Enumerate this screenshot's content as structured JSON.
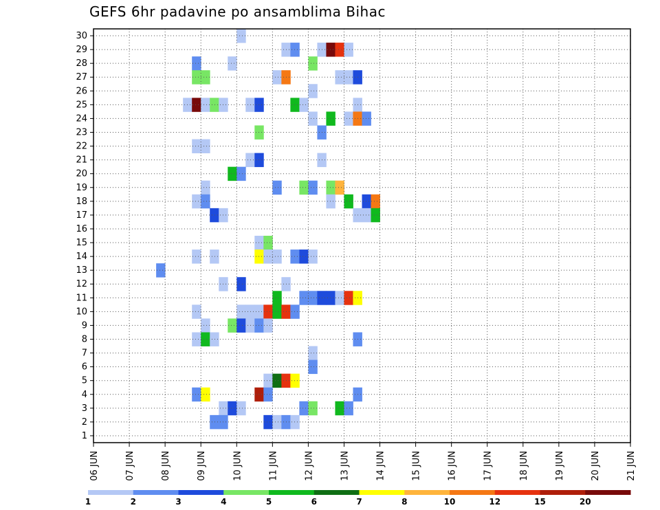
{
  "title": "GEFS 6hr padavine po ansamblima Bihac",
  "chart_data": {
    "type": "heatmap",
    "title": "GEFS 6hr padavine po ansamblima Bihac",
    "x_labels": [
      "06 JUN",
      "07 JUN",
      "08 JUN",
      "09 JUN",
      "10 JUN",
      "11 JUN",
      "12 JUN",
      "13 JUN",
      "14 JUN",
      "15 JUN",
      "16 JUN",
      "17 JUN",
      "18 JUN",
      "19 JUN",
      "20 JUN",
      "21 JUN"
    ],
    "x_range_steps_6h": [
      0,
      60
    ],
    "y_labels": [
      "1",
      "2",
      "3",
      "4",
      "5",
      "6",
      "7",
      "8",
      "9",
      "10",
      "11",
      "12",
      "13",
      "14",
      "15",
      "16",
      "17",
      "18",
      "19",
      "20",
      "21",
      "22",
      "23",
      "24",
      "25",
      "26",
      "27",
      "28",
      "29",
      "30"
    ],
    "grid": "dotted",
    "colorbar": {
      "ticks": [
        "1",
        "2",
        "3",
        "4",
        "5",
        "6",
        "7",
        "8",
        "10",
        "12",
        "15",
        "20"
      ],
      "colors": [
        "#b4c8f5",
        "#5f8df0",
        "#1e4bdc",
        "#78e664",
        "#10b91e",
        "#0f6e14",
        "#ffff00",
        "#ffb43c",
        "#f57814",
        "#e6320f",
        "#af1e0a",
        "#780a0a"
      ]
    },
    "cells": [
      [
        16,
        30,
        0
      ],
      [
        21,
        29,
        0
      ],
      [
        22,
        29,
        1
      ],
      [
        25,
        29,
        0
      ],
      [
        26,
        29,
        11
      ],
      [
        27,
        29,
        9
      ],
      [
        28,
        29,
        0
      ],
      [
        11,
        28,
        1
      ],
      [
        15,
        28,
        0
      ],
      [
        24,
        28,
        3
      ],
      [
        11,
        27,
        3
      ],
      [
        12,
        27,
        3
      ],
      [
        20,
        27,
        0
      ],
      [
        21,
        27,
        8
      ],
      [
        27,
        27,
        0
      ],
      [
        28,
        27,
        0
      ],
      [
        29,
        27,
        2
      ],
      [
        24,
        26,
        0
      ],
      [
        10,
        25,
        0
      ],
      [
        11,
        25,
        11
      ],
      [
        12,
        25,
        0
      ],
      [
        13,
        25,
        3
      ],
      [
        14,
        25,
        0
      ],
      [
        17,
        25,
        0
      ],
      [
        18,
        25,
        2
      ],
      [
        22,
        25,
        4
      ],
      [
        23,
        25,
        0
      ],
      [
        29,
        25,
        0
      ],
      [
        24,
        24,
        0
      ],
      [
        26,
        24,
        4
      ],
      [
        28,
        24,
        0
      ],
      [
        29,
        24,
        8
      ],
      [
        30,
        24,
        1
      ],
      [
        18,
        23,
        3
      ],
      [
        25,
        23,
        1
      ],
      [
        11,
        22,
        0
      ],
      [
        12,
        22,
        0
      ],
      [
        17,
        21,
        0
      ],
      [
        18,
        21,
        2
      ],
      [
        25,
        21,
        0
      ],
      [
        15,
        20,
        4
      ],
      [
        16,
        20,
        1
      ],
      [
        12,
        19,
        0
      ],
      [
        20,
        19,
        1
      ],
      [
        23,
        19,
        3
      ],
      [
        24,
        19,
        1
      ],
      [
        26,
        19,
        3
      ],
      [
        27,
        19,
        7
      ],
      [
        11,
        18,
        0
      ],
      [
        12,
        18,
        1
      ],
      [
        26,
        18,
        0
      ],
      [
        28,
        18,
        4
      ],
      [
        30,
        18,
        2
      ],
      [
        31,
        18,
        8
      ],
      [
        13,
        17,
        2
      ],
      [
        14,
        17,
        0
      ],
      [
        29,
        17,
        0
      ],
      [
        30,
        17,
        0
      ],
      [
        31,
        17,
        4
      ],
      [
        18,
        15,
        0
      ],
      [
        19,
        15,
        3
      ],
      [
        11,
        14,
        0
      ],
      [
        13,
        14,
        0
      ],
      [
        18,
        14,
        6
      ],
      [
        19,
        14,
        0
      ],
      [
        20,
        14,
        0
      ],
      [
        22,
        14,
        1
      ],
      [
        23,
        14,
        2
      ],
      [
        24,
        14,
        0
      ],
      [
        7,
        13,
        1
      ],
      [
        14,
        12,
        0
      ],
      [
        16,
        12,
        2
      ],
      [
        21,
        12,
        0
      ],
      [
        20,
        11,
        4
      ],
      [
        23,
        11,
        1
      ],
      [
        24,
        11,
        1
      ],
      [
        25,
        11,
        2
      ],
      [
        26,
        11,
        2
      ],
      [
        27,
        11,
        0
      ],
      [
        28,
        11,
        9
      ],
      [
        29,
        11,
        6
      ],
      [
        11,
        10,
        0
      ],
      [
        16,
        10,
        0
      ],
      [
        17,
        10,
        0
      ],
      [
        18,
        10,
        0
      ],
      [
        19,
        10,
        9
      ],
      [
        20,
        10,
        4
      ],
      [
        21,
        10,
        9
      ],
      [
        22,
        10,
        1
      ],
      [
        12,
        9,
        0
      ],
      [
        15,
        9,
        3
      ],
      [
        16,
        9,
        2
      ],
      [
        17,
        9,
        0
      ],
      [
        18,
        9,
        1
      ],
      [
        19,
        9,
        0
      ],
      [
        11,
        8,
        0
      ],
      [
        12,
        8,
        4
      ],
      [
        13,
        8,
        0
      ],
      [
        29,
        8,
        1
      ],
      [
        24,
        7,
        0
      ],
      [
        24,
        6,
        1
      ],
      [
        19,
        5,
        0
      ],
      [
        20,
        5,
        5
      ],
      [
        21,
        5,
        9
      ],
      [
        22,
        5,
        6
      ],
      [
        11,
        4,
        1
      ],
      [
        12,
        4,
        6
      ],
      [
        18,
        4,
        10
      ],
      [
        19,
        4,
        1
      ],
      [
        29,
        4,
        1
      ],
      [
        14,
        3,
        0
      ],
      [
        15,
        3,
        2
      ],
      [
        16,
        3,
        0
      ],
      [
        23,
        3,
        1
      ],
      [
        24,
        3,
        3
      ],
      [
        27,
        3,
        4
      ],
      [
        28,
        3,
        1
      ],
      [
        13,
        2,
        1
      ],
      [
        14,
        2,
        1
      ],
      [
        19,
        2,
        2
      ],
      [
        20,
        2,
        0
      ],
      [
        21,
        2,
        1
      ],
      [
        22,
        2,
        0
      ]
    ]
  }
}
